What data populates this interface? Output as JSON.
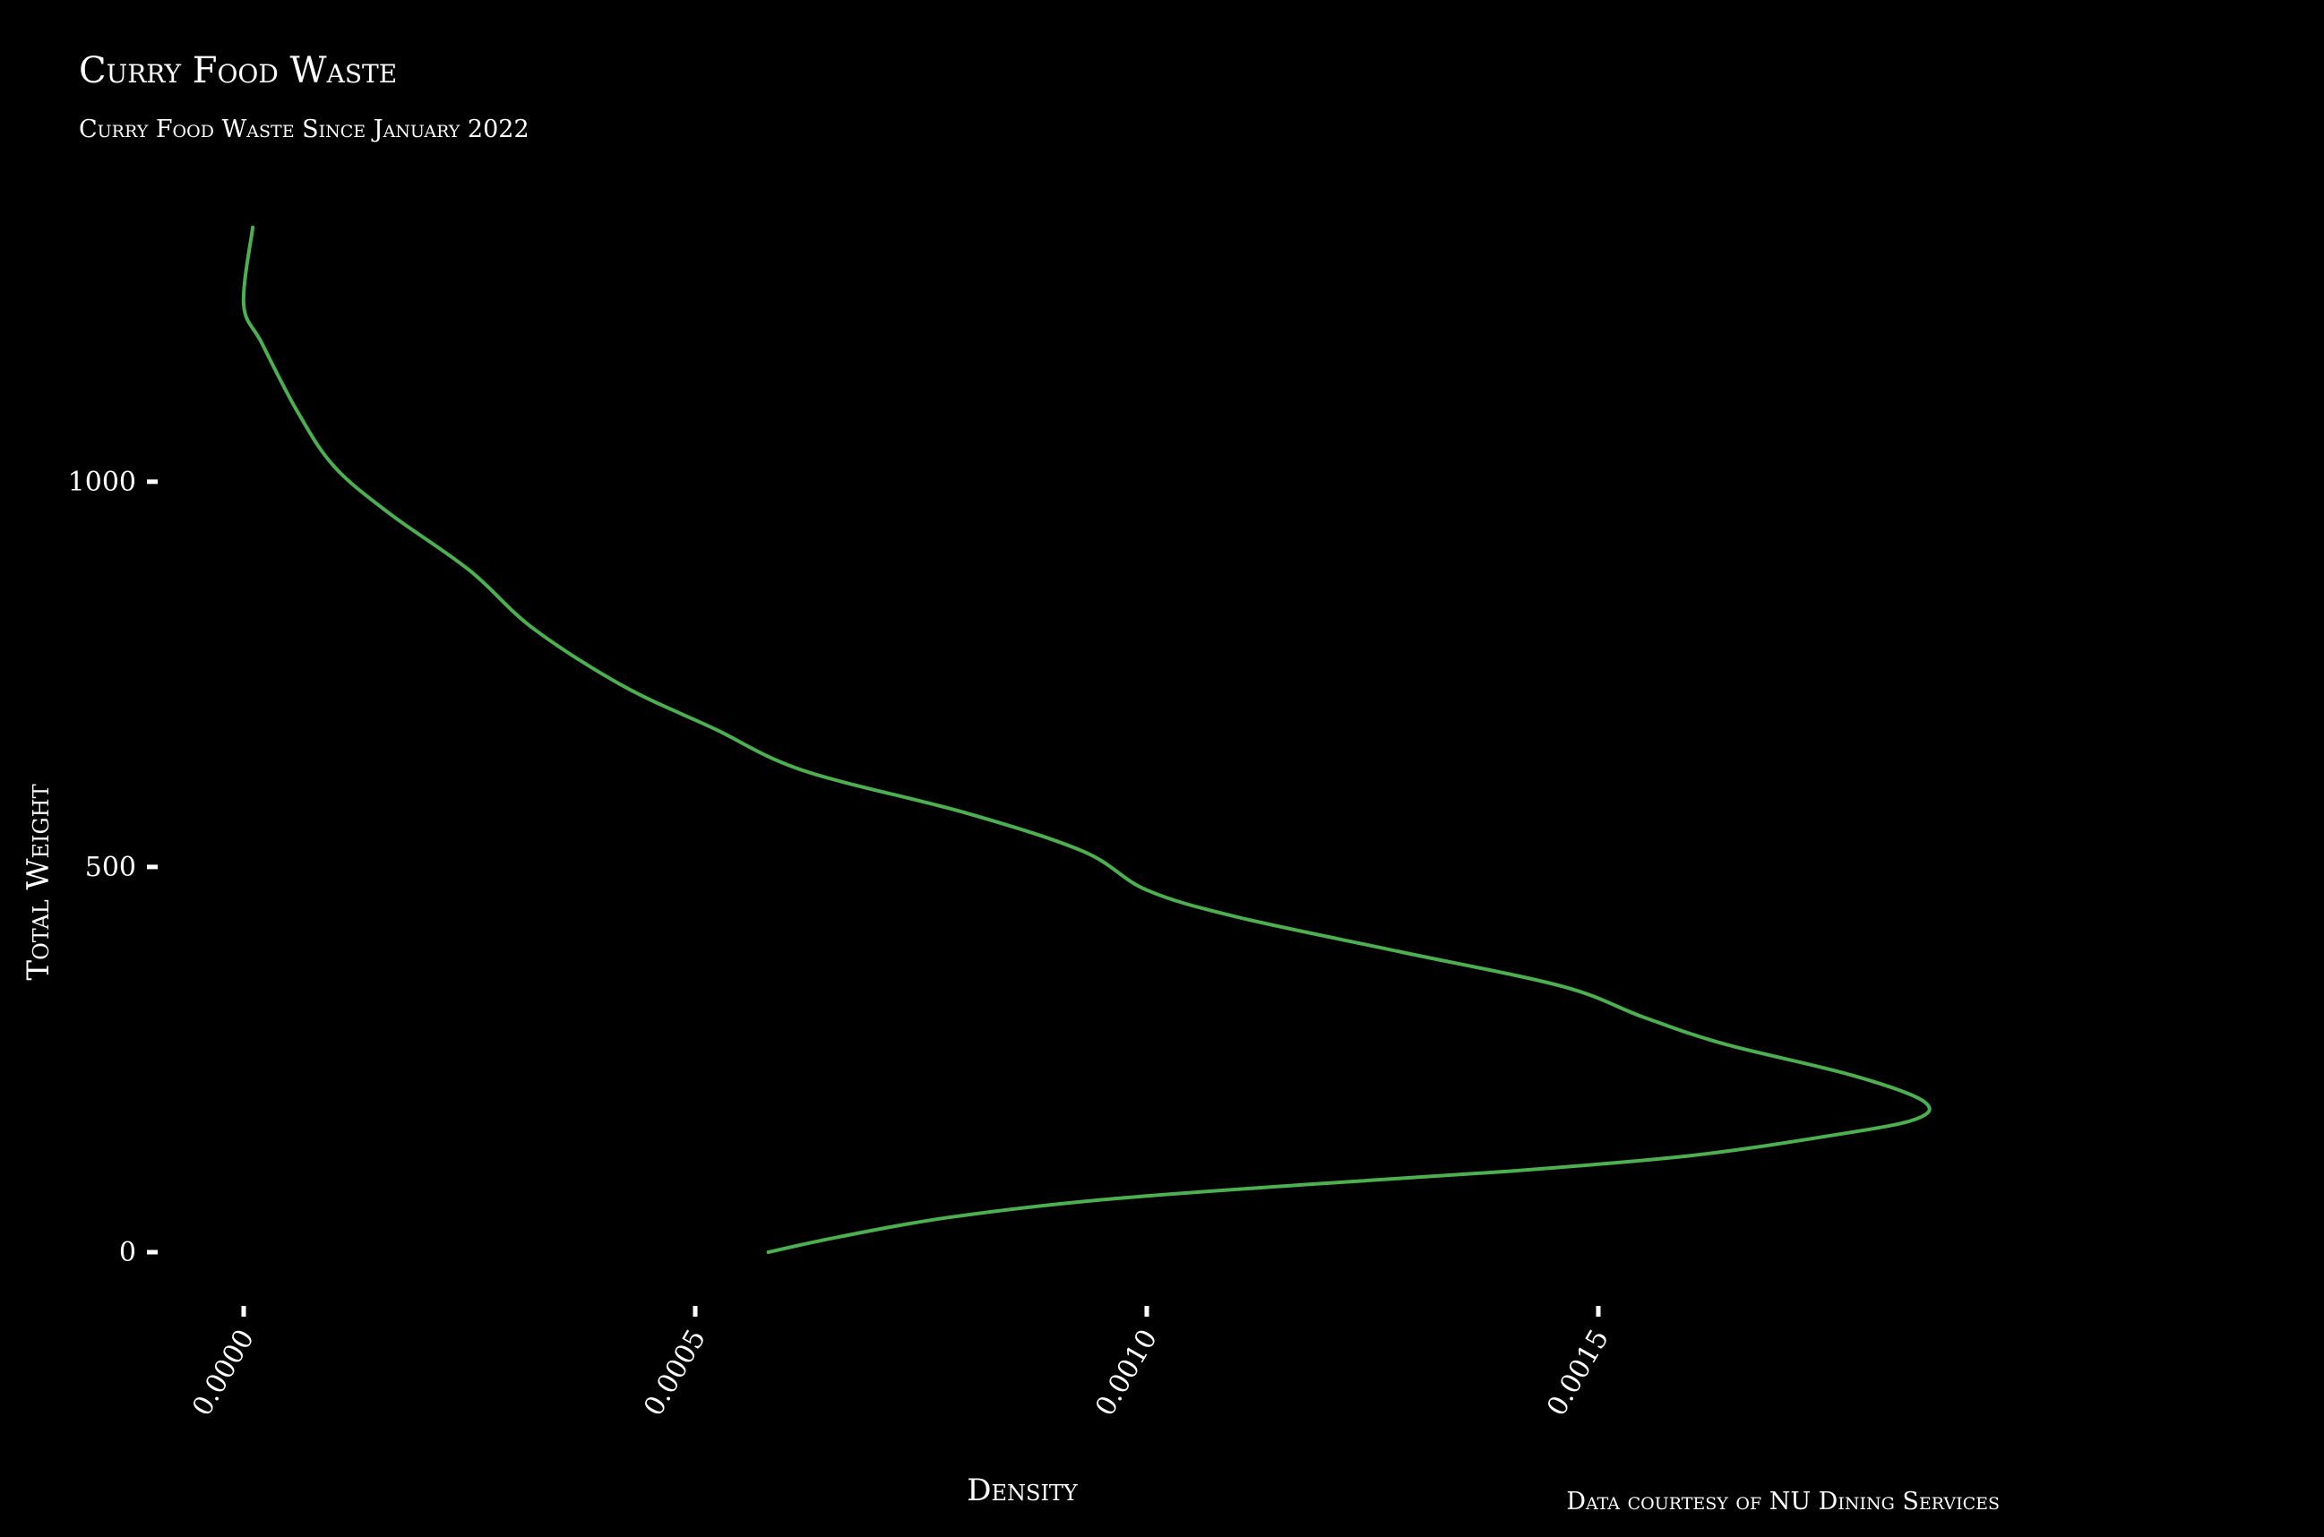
{
  "chart_data": {
    "type": "line",
    "title": "Curry Food Waste",
    "subtitle": "Curry Food Waste Since January 2022",
    "xlabel": "Density",
    "ylabel": "Total Weight",
    "caption": "Data courtesy of NU Dining Services",
    "xlim": [
      -1.01e-05,
      0.002
    ],
    "ylim": [
      -70,
      1390
    ],
    "x_ticks": [
      0,
      0.0005,
      0.001,
      0.0015
    ],
    "x_tick_labels": [
      "0.0000",
      "0.0005",
      "0.0010",
      "0.0015"
    ],
    "y_ticks": [
      0,
      500,
      1000
    ],
    "y_tick_labels": [
      "0",
      "500",
      "1000"
    ],
    "grid": false,
    "line_color": "#4caf50",
    "background": "#000000",
    "text_color": "#ffffff",
    "series": [
      {
        "points": [
          [
            0.000581,
            0
          ],
          [
            0.00066,
            20
          ],
          [
            0.00078,
            45
          ],
          [
            0.00095,
            68
          ],
          [
            0.00118,
            88
          ],
          [
            0.0014,
            105
          ],
          [
            0.0016,
            125
          ],
          [
            0.00175,
            150
          ],
          [
            0.00185,
            172
          ],
          [
            0.00186,
            196
          ],
          [
            0.00178,
            230
          ],
          [
            0.00164,
            270
          ],
          [
            0.00155,
            305
          ],
          [
            0.00146,
            345
          ],
          [
            0.00128,
            390
          ],
          [
            0.0011,
            435
          ],
          [
            0.001,
            470
          ],
          [
            0.00093,
            520
          ],
          [
            0.0008,
            570
          ],
          [
            0.00062,
            625
          ],
          [
            0.00052,
            680
          ],
          [
            0.00042,
            735
          ],
          [
            0.00032,
            810
          ],
          [
            0.00025,
            885
          ],
          [
            0.00016,
            960
          ],
          [
            0.0001,
            1020
          ],
          [
            6e-05,
            1090
          ],
          [
            2e-05,
            1180
          ],
          [
            0.0,
            1230
          ],
          [
            1e-05,
            1330
          ]
        ]
      }
    ]
  }
}
